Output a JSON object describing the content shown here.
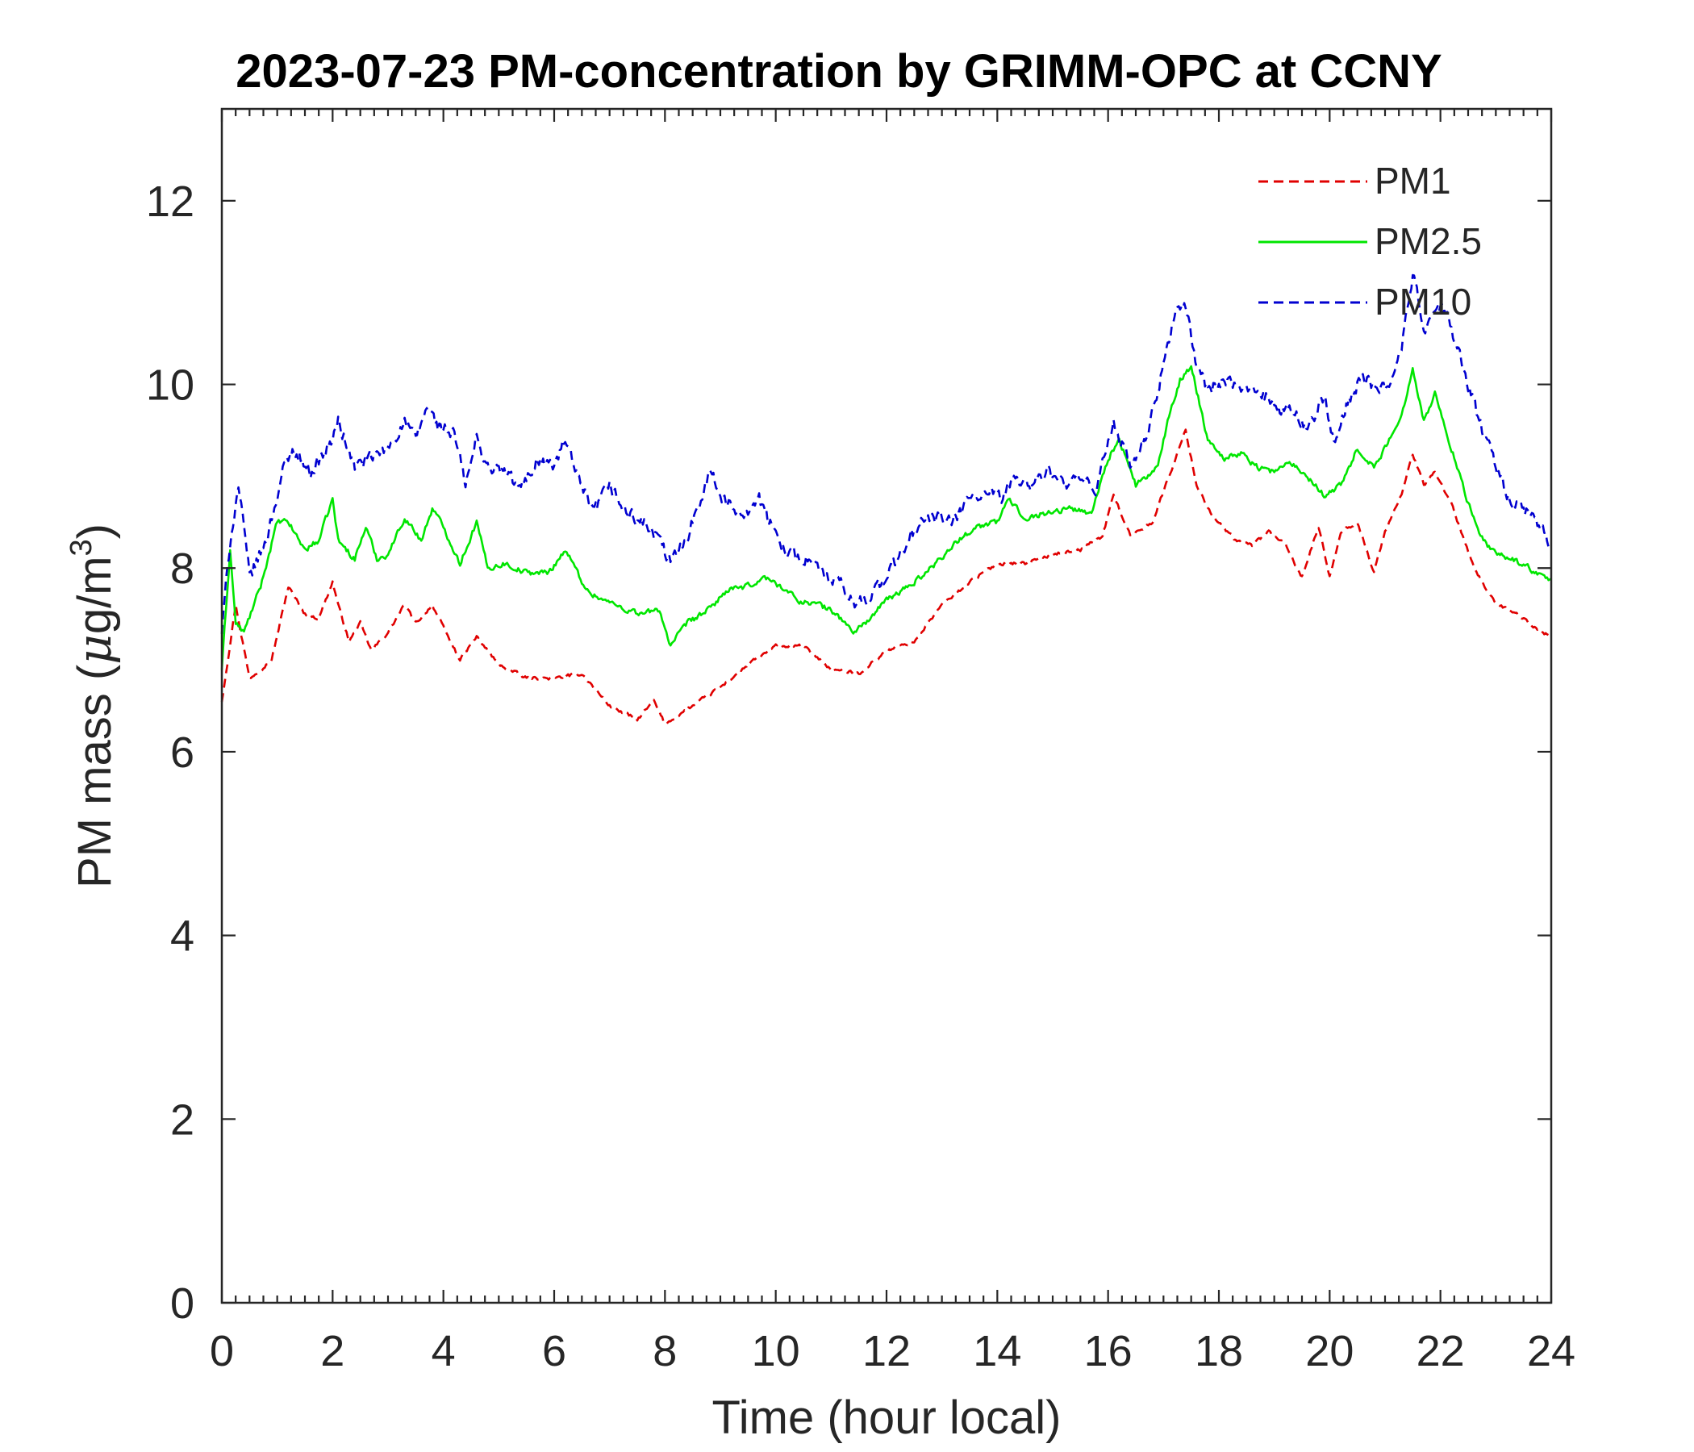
{
  "chart_data": {
    "type": "line",
    "title": "2023-07-23 PM-concentration by GRIMM-OPC at CCNY",
    "xlabel": "Time (hour local)",
    "ylabel_main": "PM mass (",
    "ylabel_mu": "μ",
    "ylabel_unit": "g/m",
    "ylabel_sup": "3",
    "ylabel_close": ")",
    "xlim": [
      0,
      24
    ],
    "ylim": [
      0,
      13
    ],
    "x_ticks": [
      0,
      2,
      4,
      6,
      8,
      10,
      12,
      14,
      16,
      18,
      20,
      22,
      24
    ],
    "y_ticks": [
      0,
      2,
      4,
      6,
      8,
      10,
      12
    ],
    "x_tick_labels": [
      "0",
      "2",
      "4",
      "6",
      "8",
      "10",
      "12",
      "14",
      "16",
      "18",
      "20",
      "22",
      "24"
    ],
    "y_tick_labels": [
      "0",
      "2",
      "4",
      "6",
      "8",
      "10",
      "12"
    ],
    "grid": false,
    "legend_position": "top-right",
    "series": [
      {
        "name": "PM1",
        "color": "#e00000",
        "dash": true,
        "x": [
          0,
          0.25,
          0.5,
          0.9,
          1.2,
          1.5,
          1.75,
          2.0,
          2.1,
          2.3,
          2.5,
          2.7,
          3.0,
          3.3,
          3.5,
          3.8,
          4.0,
          4.3,
          4.6,
          5.0,
          5.5,
          6.0,
          6.5,
          7.0,
          7.5,
          7.8,
          8.0,
          8.5,
          9.0,
          9.5,
          10.0,
          10.5,
          11.0,
          11.5,
          12.0,
          12.5,
          13.0,
          13.5,
          14.0,
          14.5,
          15.0,
          15.5,
          15.9,
          16.1,
          16.4,
          16.8,
          17.1,
          17.4,
          17.6,
          17.9,
          18.3,
          18.6,
          18.9,
          19.2,
          19.5,
          19.8,
          20.0,
          20.2,
          20.5,
          20.8,
          21.0,
          21.3,
          21.5,
          21.7,
          21.9,
          22.2,
          22.6,
          23.0,
          23.4,
          23.7,
          24.0
        ],
        "y": [
          6.55,
          7.6,
          6.8,
          7.0,
          7.8,
          7.5,
          7.45,
          7.85,
          7.6,
          7.2,
          7.4,
          7.1,
          7.3,
          7.6,
          7.4,
          7.6,
          7.35,
          7.0,
          7.25,
          6.95,
          6.8,
          6.8,
          6.85,
          6.5,
          6.35,
          6.55,
          6.3,
          6.5,
          6.7,
          6.95,
          7.15,
          7.15,
          6.9,
          6.85,
          7.1,
          7.2,
          7.6,
          7.85,
          8.05,
          8.05,
          8.15,
          8.2,
          8.35,
          8.8,
          8.35,
          8.5,
          9.0,
          9.5,
          8.9,
          8.55,
          8.3,
          8.25,
          8.4,
          8.25,
          7.9,
          8.45,
          7.9,
          8.4,
          8.5,
          7.95,
          8.4,
          8.8,
          9.25,
          8.9,
          9.05,
          8.7,
          8.0,
          7.6,
          7.5,
          7.35,
          7.25
        ]
      },
      {
        "name": "PM2.5",
        "color": "#00e600",
        "dash": false,
        "x": [
          0,
          0.15,
          0.25,
          0.4,
          0.7,
          1.0,
          1.2,
          1.5,
          1.75,
          2.0,
          2.1,
          2.4,
          2.6,
          2.8,
          3.0,
          3.3,
          3.6,
          3.8,
          4.0,
          4.3,
          4.6,
          4.8,
          5.1,
          5.5,
          5.9,
          6.2,
          6.6,
          6.9,
          7.3,
          7.6,
          7.9,
          8.1,
          8.4,
          8.8,
          9.1,
          9.5,
          9.8,
          10.1,
          10.4,
          10.8,
          11.1,
          11.4,
          11.7,
          12.0,
          12.4,
          12.8,
          13.2,
          13.6,
          14.0,
          14.2,
          14.5,
          14.9,
          15.3,
          15.7,
          16.0,
          16.2,
          16.5,
          16.9,
          17.1,
          17.3,
          17.5,
          17.8,
          18.1,
          18.4,
          18.7,
          19.0,
          19.3,
          19.6,
          19.9,
          20.2,
          20.5,
          20.8,
          21.0,
          21.3,
          21.5,
          21.7,
          21.9,
          22.1,
          22.4,
          22.7,
          23.0,
          23.3,
          23.6,
          24.0
        ],
        "y": [
          6.9,
          8.2,
          7.4,
          7.3,
          7.8,
          8.5,
          8.5,
          8.2,
          8.3,
          8.75,
          8.3,
          8.1,
          8.45,
          8.1,
          8.15,
          8.55,
          8.3,
          8.65,
          8.45,
          8.05,
          8.5,
          8.0,
          8.05,
          7.95,
          7.95,
          8.2,
          7.75,
          7.65,
          7.55,
          7.5,
          7.55,
          7.15,
          7.4,
          7.55,
          7.75,
          7.8,
          7.9,
          7.8,
          7.65,
          7.6,
          7.5,
          7.3,
          7.45,
          7.65,
          7.8,
          8.0,
          8.25,
          8.45,
          8.5,
          8.75,
          8.55,
          8.6,
          8.65,
          8.6,
          9.2,
          9.4,
          8.9,
          9.1,
          9.65,
          10.05,
          10.2,
          9.4,
          9.2,
          9.25,
          9.1,
          9.05,
          9.15,
          9.0,
          8.8,
          8.9,
          9.3,
          9.1,
          9.3,
          9.65,
          10.2,
          9.6,
          9.9,
          9.5,
          8.9,
          8.35,
          8.15,
          8.1,
          8.0,
          7.85
        ]
      },
      {
        "name": "PM10",
        "color": "#0000d0",
        "dash": true,
        "x": [
          0,
          0.15,
          0.3,
          0.5,
          0.8,
          1.1,
          1.3,
          1.6,
          1.8,
          2.0,
          2.1,
          2.4,
          2.7,
          3.0,
          3.3,
          3.5,
          3.7,
          3.9,
          4.2,
          4.4,
          4.6,
          4.8,
          5.1,
          5.4,
          5.7,
          6.0,
          6.2,
          6.4,
          6.7,
          7.0,
          7.3,
          7.6,
          7.9,
          8.1,
          8.4,
          8.8,
          9.1,
          9.4,
          9.7,
          10.0,
          10.3,
          10.6,
          10.9,
          11.2,
          11.4,
          11.7,
          12.0,
          12.3,
          12.6,
          12.9,
          13.2,
          13.5,
          13.8,
          14.1,
          14.3,
          14.6,
          14.9,
          15.2,
          15.5,
          15.8,
          16.0,
          16.1,
          16.4,
          16.7,
          17.0,
          17.2,
          17.4,
          17.6,
          17.8,
          18.1,
          18.4,
          18.7,
          19.0,
          19.3,
          19.6,
          19.9,
          20.1,
          20.3,
          20.6,
          20.9,
          21.1,
          21.3,
          21.5,
          21.7,
          21.9,
          22.1,
          22.4,
          22.7,
          23.0,
          23.3,
          23.6,
          24.0
        ],
        "y": [
          7.3,
          8.3,
          8.9,
          7.9,
          8.3,
          9.05,
          9.3,
          9.05,
          9.2,
          9.4,
          9.6,
          9.1,
          9.2,
          9.3,
          9.6,
          9.4,
          9.75,
          9.55,
          9.45,
          8.9,
          9.4,
          9.1,
          9.05,
          8.85,
          9.2,
          9.1,
          9.4,
          9.0,
          8.6,
          8.9,
          8.6,
          8.5,
          8.3,
          8.05,
          8.35,
          9.05,
          8.7,
          8.6,
          8.75,
          8.35,
          8.15,
          8.1,
          7.9,
          7.8,
          7.6,
          7.7,
          7.9,
          8.2,
          8.5,
          8.55,
          8.5,
          8.75,
          8.8,
          8.75,
          9.0,
          8.9,
          9.05,
          8.9,
          8.95,
          8.85,
          9.4,
          9.6,
          9.1,
          9.4,
          10.2,
          10.8,
          10.85,
          10.2,
          9.95,
          10.05,
          9.9,
          10.0,
          9.75,
          9.7,
          9.55,
          9.85,
          9.3,
          9.8,
          10.1,
          9.9,
          10.05,
          10.4,
          11.2,
          10.6,
          10.8,
          10.8,
          10.2,
          9.6,
          9.1,
          8.7,
          8.6,
          8.25
        ]
      }
    ]
  }
}
